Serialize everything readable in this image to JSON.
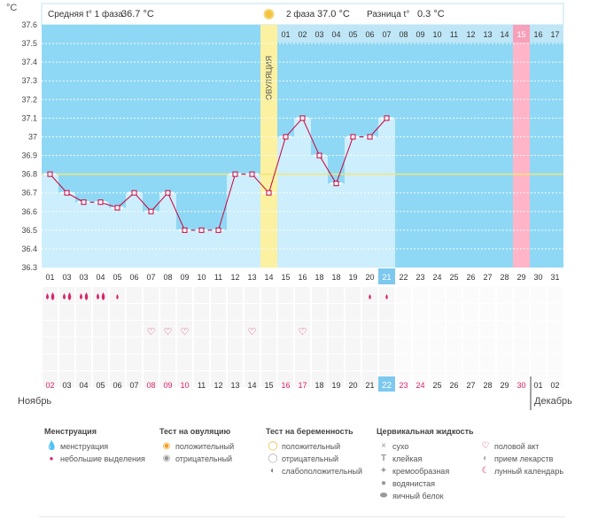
{
  "chart_data": {
    "type": "line",
    "unit_label": "°C",
    "ylim": [
      36.3,
      37.6
    ],
    "y_ticks": [
      "37.6",
      "37.5",
      "37.4",
      "37.3",
      "37.2",
      "37.1",
      "37",
      "36.9",
      "36.8",
      "36.7",
      "36.6",
      "36.5",
      "36.4",
      "36.3"
    ],
    "header": {
      "phase1_label": "Средняя t° 1 фаза",
      "phase1_value": "36.7 °C",
      "phase2_label": "2 фаза",
      "phase2_value": "37.0 °C",
      "diff_label": "Разница t°",
      "diff_value": "0.3 °C"
    },
    "ovulation_label": "ОВУЛЯЦИЯ",
    "cycle_day_labels": [
      "01",
      "03",
      "03",
      "04",
      "05",
      "06",
      "07",
      "08",
      "09",
      "10",
      "11",
      "12",
      "13",
      "14",
      "15",
      "16",
      "18",
      "18",
      "19",
      "20",
      "21",
      "22",
      "23",
      "24",
      "25",
      "26",
      "27",
      "28",
      "29",
      "30",
      "31"
    ],
    "post_ovulation_day_labels": [
      "01",
      "02",
      "03",
      "04",
      "05",
      "06",
      "07",
      "08",
      "09",
      "10",
      "11",
      "12",
      "13",
      "14",
      "15",
      "16",
      "17"
    ],
    "highlighted_day": "21",
    "temperatures": [
      36.8,
      36.7,
      36.65,
      36.65,
      36.62,
      36.7,
      36.6,
      36.7,
      36.5,
      36.5,
      36.5,
      36.8,
      36.8,
      36.7,
      37.0,
      37.1,
      36.9,
      36.75,
      37.0,
      37.0,
      37.1
    ],
    "coverline": 36.8,
    "menstruation_days": [
      1,
      2,
      3,
      4,
      5,
      20,
      21
    ],
    "menstruation_heavy_days": [
      1,
      2,
      3,
      4
    ],
    "intercourse_days": [
      7,
      8,
      9,
      13,
      16
    ],
    "calendar_dates": [
      "02",
      "03",
      "04",
      "05",
      "06",
      "07",
      "08",
      "09",
      "10",
      "11",
      "12",
      "13",
      "14",
      "15",
      "16",
      "17",
      "18",
      "19",
      "20",
      "21",
      "22",
      "23",
      "24",
      "25",
      "26",
      "27",
      "28",
      "29",
      "30",
      "01",
      "02"
    ],
    "calendar_highlighted_dates": [
      "02",
      "08",
      "09",
      "10",
      "16",
      "17",
      "23",
      "24",
      "30"
    ],
    "calendar_today": "22",
    "month_left": "Ноябрь",
    "month_right": "Декабрь",
    "colors": {
      "sky": "#8fd8f5",
      "bar": "#cdeefc",
      "line": "#c8003c",
      "ovulation": "#fbf1a0",
      "pink": "#ffb4c8",
      "today": "#7cc8ee",
      "coverline": "#efe67a"
    }
  },
  "legend": {
    "menstruation": {
      "title": "Менструация",
      "items": [
        "менструация",
        "небольшие выделения"
      ]
    },
    "ovulation_test": {
      "title": "Тест на овуляцию",
      "items": [
        "положительный",
        "отрицательный"
      ]
    },
    "pregnancy_test": {
      "title": "Тест на беременность",
      "items": [
        "положительный",
        "отрицательный",
        "слабоположительный"
      ]
    },
    "cervical_fluid": {
      "title": "Цервикальная жидкость",
      "items": [
        "сухо",
        "клейкая",
        "кремообразная",
        "водянистая",
        "яичный белок"
      ]
    },
    "other": {
      "items": [
        "половой акт",
        "прием лекарств",
        "лунный календарь"
      ]
    }
  }
}
